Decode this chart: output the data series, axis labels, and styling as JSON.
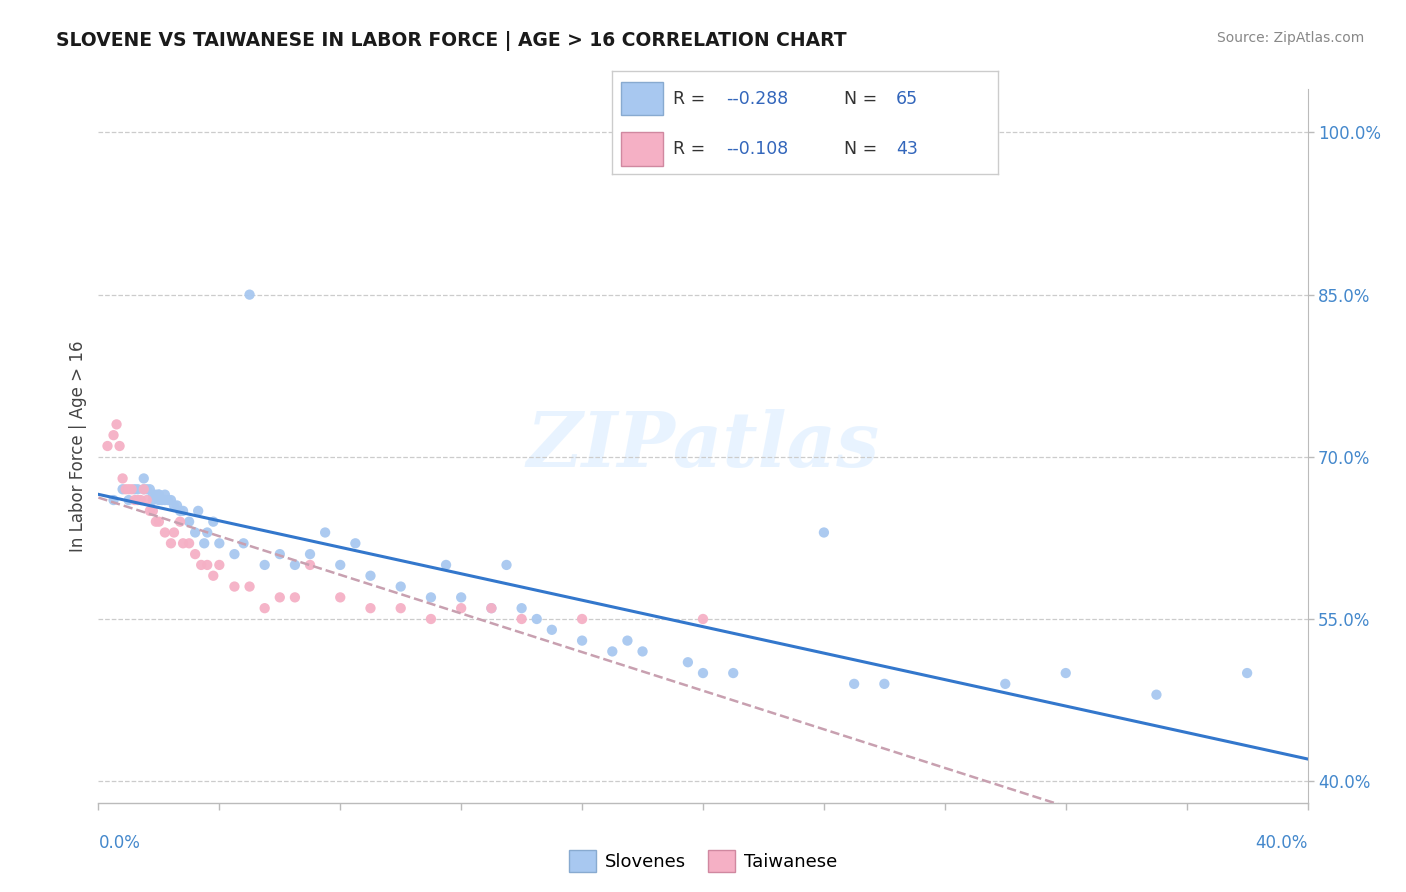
{
  "title": "SLOVENE VS TAIWANESE IN LABOR FORCE | AGE > 16 CORRELATION CHART",
  "source": "Source: ZipAtlas.com",
  "ylabel": "In Labor Force | Age > 16",
  "legend_r1": "-0.288",
  "legend_n1": "65",
  "legend_r2": "-0.108",
  "legend_n2": "43",
  "blue_color": "#a8c8f0",
  "pink_color": "#f5b0c5",
  "blue_line_color": "#3377cc",
  "pink_line_color": "#c8a0b0",
  "watermark_color": "#ddeeff",
  "watermark": "ZIPatlas",
  "xlim": [
    0.0,
    0.4
  ],
  "ylim": [
    0.38,
    1.04
  ],
  "yticks": [
    0.4,
    0.55,
    0.7,
    0.85,
    1.0
  ],
  "ytick_labels": [
    "40.0%",
    "55.0%",
    "70.0%",
    "85.0%",
    "100.0%"
  ],
  "xtick_left": "0.0%",
  "xtick_right": "40.0%",
  "slovene_x": [
    0.005,
    0.008,
    0.01,
    0.012,
    0.013,
    0.015,
    0.015,
    0.016,
    0.017,
    0.018,
    0.018,
    0.019,
    0.02,
    0.02,
    0.02,
    0.021,
    0.022,
    0.022,
    0.023,
    0.024,
    0.025,
    0.026,
    0.027,
    0.028,
    0.03,
    0.032,
    0.033,
    0.035,
    0.036,
    0.038,
    0.04,
    0.045,
    0.048,
    0.05,
    0.055,
    0.06,
    0.065,
    0.07,
    0.075,
    0.08,
    0.085,
    0.09,
    0.1,
    0.11,
    0.115,
    0.12,
    0.13,
    0.135,
    0.14,
    0.145,
    0.15,
    0.16,
    0.17,
    0.175,
    0.18,
    0.195,
    0.2,
    0.21,
    0.24,
    0.25,
    0.26,
    0.3,
    0.32,
    0.35,
    0.38
  ],
  "slovene_y": [
    0.66,
    0.67,
    0.66,
    0.67,
    0.67,
    0.68,
    0.67,
    0.67,
    0.67,
    0.665,
    0.66,
    0.665,
    0.665,
    0.66,
    0.665,
    0.66,
    0.665,
    0.66,
    0.66,
    0.66,
    0.655,
    0.655,
    0.65,
    0.65,
    0.64,
    0.63,
    0.65,
    0.62,
    0.63,
    0.64,
    0.62,
    0.61,
    0.62,
    0.85,
    0.6,
    0.61,
    0.6,
    0.61,
    0.63,
    0.6,
    0.62,
    0.59,
    0.58,
    0.57,
    0.6,
    0.57,
    0.56,
    0.6,
    0.56,
    0.55,
    0.54,
    0.53,
    0.52,
    0.53,
    0.52,
    0.51,
    0.5,
    0.5,
    0.63,
    0.49,
    0.49,
    0.49,
    0.5,
    0.48,
    0.5
  ],
  "taiwanese_x": [
    0.003,
    0.005,
    0.006,
    0.007,
    0.008,
    0.009,
    0.01,
    0.011,
    0.012,
    0.013,
    0.014,
    0.015,
    0.016,
    0.017,
    0.018,
    0.019,
    0.02,
    0.022,
    0.024,
    0.025,
    0.027,
    0.028,
    0.03,
    0.032,
    0.034,
    0.036,
    0.038,
    0.04,
    0.045,
    0.05,
    0.055,
    0.06,
    0.065,
    0.07,
    0.08,
    0.09,
    0.1,
    0.11,
    0.12,
    0.13,
    0.14,
    0.16,
    0.2
  ],
  "taiwanese_y": [
    0.71,
    0.72,
    0.73,
    0.71,
    0.68,
    0.67,
    0.67,
    0.67,
    0.66,
    0.66,
    0.66,
    0.67,
    0.66,
    0.65,
    0.65,
    0.64,
    0.64,
    0.63,
    0.62,
    0.63,
    0.64,
    0.62,
    0.62,
    0.61,
    0.6,
    0.6,
    0.59,
    0.6,
    0.58,
    0.58,
    0.56,
    0.57,
    0.57,
    0.6,
    0.57,
    0.56,
    0.56,
    0.55,
    0.56,
    0.56,
    0.55,
    0.55,
    0.55
  ]
}
